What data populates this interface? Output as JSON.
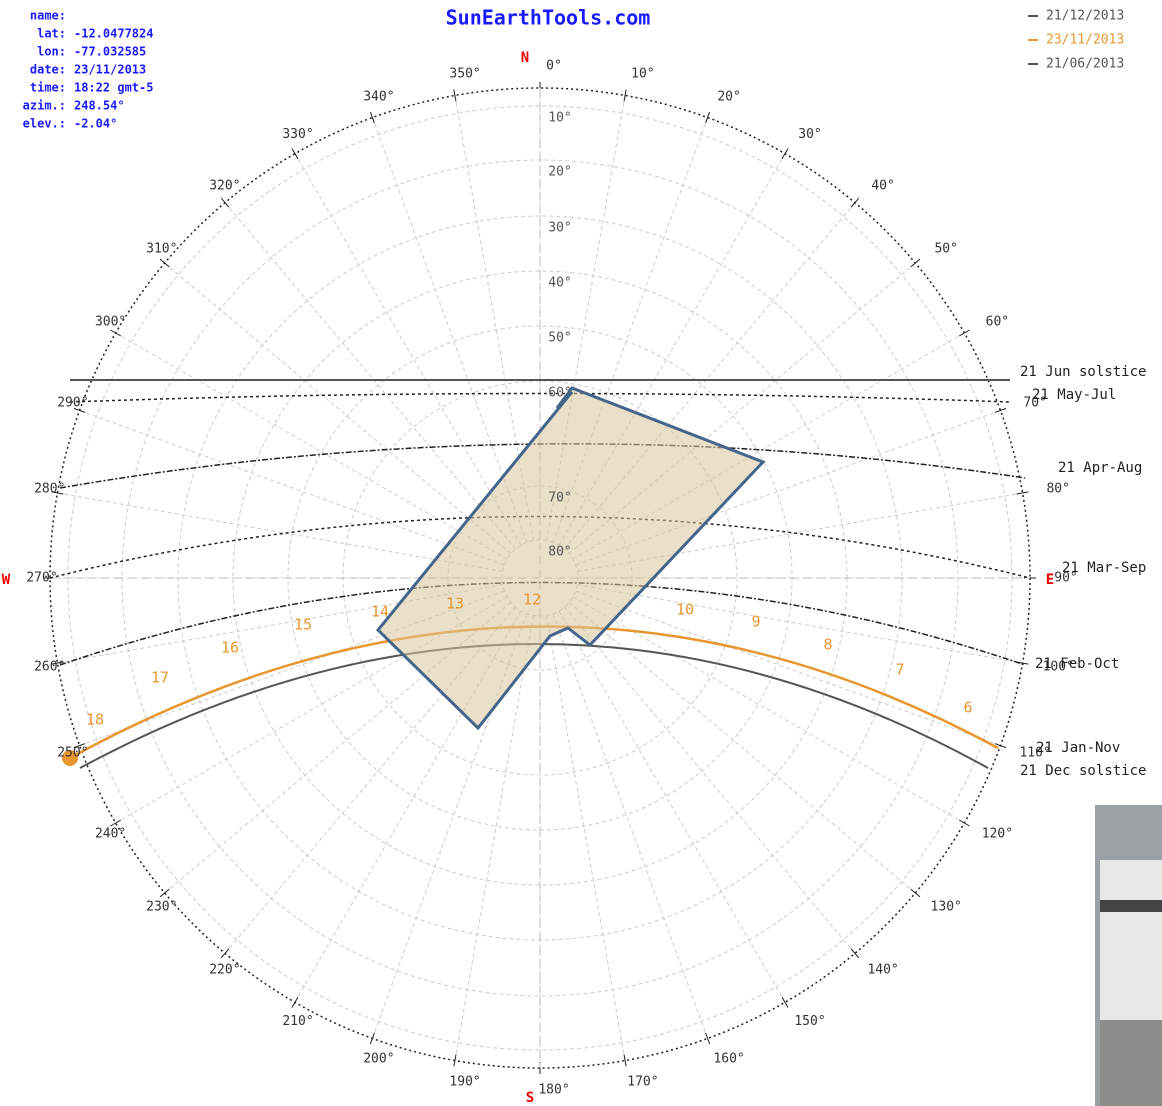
{
  "site": "SunEarthTools.com",
  "info": {
    "name": "name:",
    "rows": [
      [
        "lat:",
        "-12.0477824"
      ],
      [
        "lon:",
        "-77.032585"
      ],
      [
        "date:",
        "23/11/2013"
      ],
      [
        "time:",
        "18:22 gmt-5"
      ],
      [
        "azim.:",
        "248.54°"
      ],
      [
        "elev.:",
        "-2.04°"
      ]
    ]
  },
  "legend": [
    {
      "label": "21/12/2013",
      "color": "#555555"
    },
    {
      "label": "23/11/2013",
      "color": "#e8962e"
    },
    {
      "label": "21/06/2013",
      "color": "#555555"
    }
  ],
  "cardinals": {
    "N": "N",
    "E": "E",
    "S": "S",
    "W": "W"
  },
  "azimuth_labels": [
    "0°",
    "10°",
    "20°",
    "30°",
    "40°",
    "50°",
    "60°",
    "70°",
    "80°",
    "90°",
    "100°",
    "110°",
    "120°",
    "130°",
    "140°",
    "150°",
    "160°",
    "170°",
    "180°",
    "190°",
    "200°",
    "210°",
    "220°",
    "230°",
    "240°",
    "250°",
    "260°",
    "270°",
    "280°",
    "290°",
    "300°",
    "310°",
    "320°",
    "330°",
    "340°",
    "350°"
  ],
  "elevation_labels": [
    "10°",
    "20°",
    "30°",
    "40°",
    "50°",
    "60°",
    "70°",
    "80°"
  ],
  "hour_labels": [
    "6",
    "7",
    "8",
    "9",
    "10",
    "12",
    "13",
    "14",
    "15",
    "16",
    "17",
    "18"
  ],
  "date_labels": [
    "21 Jun solstice",
    "21 May-Jul",
    "21 Apr-Aug",
    "21 Mar-Sep",
    "21 Feb-Oct",
    "21 Jan-Nov",
    "21 Dec solstice"
  ]
}
